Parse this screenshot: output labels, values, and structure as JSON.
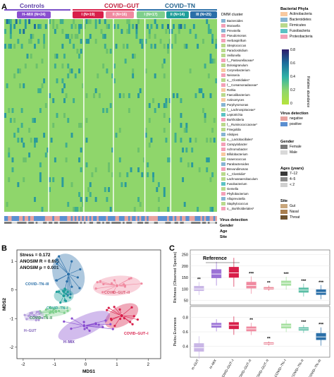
{
  "panelA": {
    "letter": "A",
    "groups": [
      "Controls",
      "COVID–GUT",
      "COVID–TN"
    ],
    "pills": [
      "H–MIX (N=24)",
      "I (N=19)",
      "II (N=16)",
      "I (N=17)",
      "II (N=14)",
      "III (N=25)"
    ],
    "dmm_label": "DMM cluster",
    "taxa": [
      "Bacteroides",
      "Moraxella",
      "Prevotella",
      "Pseudomonas",
      "Herbaspirillum",
      "Streptococcus",
      "Paraclostridium",
      "Veillonella",
      "f__Pasteurellaceae*",
      "Dolosigranulum",
      "Corynebacterium",
      "Neisseria",
      "o__Clostridiales*",
      "f__Comamonadaceae*",
      "Rothia",
      "Faecalibacterium",
      "Actinomyces",
      "Porphyromonas",
      "f__Lachnospiraceae*",
      "Leptotrichia",
      "Burkholderia",
      "f__Ruminococcaceae*",
      "Finegoldia",
      "Alistipes",
      "o__Lactobacillales*",
      "Campylobacter",
      "Achromobacter",
      "Bifidobacterium",
      "Anaerococcus",
      "Parabacteroides",
      "Brevundimonas",
      "c__Clostridia*",
      "Lachnoanaerobaculum",
      "Fusobacterium",
      "Gemella",
      "Phyllobacterium",
      "Alloprevotella",
      "Staphylococcus",
      "o__Burkholderiales*"
    ],
    "taxa_colors": [
      "#86b4d3",
      "#f4a0b8",
      "#86b4d3",
      "#f4a0b8",
      "#f4a0b8",
      "#b9d98c",
      "#b9d98c",
      "#b9d98c",
      "#f4a0b8",
      "#b9d98c",
      "#f8c9a0",
      "#f4a0b8",
      "#b9d98c",
      "#f4a0b8",
      "#f8c9a0",
      "#b9d98c",
      "#f8c9a0",
      "#86b4d3",
      "#b9d98c",
      "#5bc2c4",
      "#f4a0b8",
      "#b9d98c",
      "#b9d98c",
      "#86b4d3",
      "#b9d98c",
      "#f4a0b8",
      "#f4a0b8",
      "#f8c9a0",
      "#b9d98c",
      "#86b4d3",
      "#f4a0b8",
      "#b9d98c",
      "#b9d98c",
      "#5bc2c4",
      "#b9d98c",
      "#f4a0b8",
      "#86b4d3",
      "#b9d98c",
      "#f4a0b8"
    ],
    "track_labels": [
      "Virus detection",
      "Gender",
      "Age",
      "Site"
    ],
    "legend": {
      "phyla_title": "Bacterial Phyla",
      "phyla": [
        {
          "name": "Actinobacteria",
          "color": "#f8c9a0"
        },
        {
          "name": "Bacteroidetes",
          "color": "#86b4d3"
        },
        {
          "name": "Firmicutes",
          "color": "#b9d98c"
        },
        {
          "name": "Fusobacteria",
          "color": "#5bc2c4"
        },
        {
          "name": "Proteobacteria",
          "color": "#f4a0b8"
        }
      ],
      "abundance_title": "Relative abundance",
      "abundance_ticks": [
        "0.8",
        "0.6",
        "0.4",
        "0.2",
        "0"
      ],
      "virus_title": "Virus detection",
      "virus": [
        {
          "name": "negative",
          "color": "#e7a3a0"
        },
        {
          "name": "positive",
          "color": "#5a8fd1"
        }
      ],
      "gender_title": "Gender",
      "gender": [
        {
          "name": "Female",
          "color": "#7a7a7a"
        },
        {
          "name": "Male",
          "color": "#d9d9d9"
        }
      ],
      "age_title": "Ages (years)",
      "age": [
        {
          "name": "7–12",
          "color": "#3a3a3a"
        },
        {
          "name": "4–5",
          "color": "#8a8a8a"
        },
        {
          "name": "< 2",
          "color": "#d0d0d0"
        }
      ],
      "site_title": "Site",
      "site": [
        {
          "name": "Gut",
          "color": "#c9a77c"
        },
        {
          "name": "Nasal",
          "color": "#a97f4f"
        },
        {
          "name": "Throat",
          "color": "#6e5431"
        }
      ]
    }
  },
  "panelB": {
    "letter": "B",
    "stats": [
      "Stress = 0.172",
      "ANOSIM R = 0.695",
      "ANOSIM p = 0.001"
    ],
    "xlabel": "MDS1",
    "ylabel": "MDS2",
    "xticks": [
      "-2",
      "-1",
      "0",
      "1",
      "2"
    ],
    "yticks": [
      "1",
      "0",
      "-1",
      "-2"
    ],
    "cluster_labels": [
      "COVID–TN–III",
      "COVID–TN–I",
      "COVID–TN–II",
      "COVID–GUT–II",
      "COVID–GUT–I",
      "H–GUT",
      "H–MIX"
    ]
  },
  "panelC": {
    "letter": "C",
    "reference_label": "Reference",
    "top_ylabel": "Richness (Observed Species)",
    "bottom_ylabel": "Pielou Evenness",
    "top_yticks": [
      "250",
      "200",
      "150",
      "100",
      "50"
    ],
    "bottom_yticks": [
      "0.8",
      "0.6",
      "0.4"
    ],
    "categories": [
      "H–GUT",
      "H–MIX",
      "COVID–GUT–I",
      "COVID–GUT–II",
      "COVID–TN–I",
      "COVID–TN–II",
      "COVID–TN–III"
    ],
    "x_labels": [
      "H–GUT",
      "H–MIX",
      "COVID–GUT–I",
      "COVID–GUT–II",
      "*COVID–GUT–II",
      "COVID–TN–I",
      "COVID–TN–II",
      "COVID–TN–III"
    ],
    "top_sig": [
      "**",
      "",
      "",
      "***",
      "**",
      "***",
      "***",
      "***"
    ],
    "bottom_sig": [
      "",
      "",
      "",
      "**",
      "**",
      "",
      "***",
      "***"
    ]
  },
  "chart_data": [
    {
      "type": "heatmap",
      "title": "",
      "xlabel": "",
      "ylabel": "",
      "categories": [
        "Bacteroides",
        "Moraxella",
        "Prevotella",
        "Pseudomonas",
        "Herbaspirillum",
        "Streptococcus",
        "Paraclostridium",
        "Veillonella",
        "f__Pasteurellaceae*",
        "Dolosigranulum",
        "Corynebacterium",
        "Neisseria",
        "o__Clostridiales*",
        "f__Comamonadaceae*",
        "Rothia",
        "Faecalibacterium",
        "Actinomyces",
        "Porphyromonas",
        "f__Lachnospiraceae*",
        "Leptotrichia",
        "Burkholderia",
        "f__Ruminococcaceae*",
        "Finegoldia",
        "Alistipes",
        "o__Lactobacillales*",
        "Campylobacter",
        "Achromobacter",
        "Bifidobacterium",
        "Anaerococcus",
        "Parabacteroides",
        "Brevundimonas",
        "c__Clostridia*",
        "Lachnoanaerobaculum",
        "Fusobacterium",
        "Gemella",
        "Phyllobacterium",
        "Alloprevotella",
        "Staphylococcus",
        "o__Burkholderiales*"
      ],
      "clusters": [
        "H–MIX",
        "I",
        "II",
        "I",
        "II",
        "III"
      ],
      "cluster_sizes": [
        24,
        19,
        16,
        17,
        14,
        25
      ],
      "value_range": [
        0,
        0.8
      ]
    },
    {
      "type": "scatter",
      "title": "",
      "xlabel": "MDS1",
      "ylabel": "MDS2",
      "xlim": [
        -2.2,
        2.4
      ],
      "ylim": [
        -2.4,
        1.4
      ],
      "series": [
        {
          "name": "COVID–TN–III",
          "color": "#2a6fa8",
          "center": [
            -0.55,
            0.55
          ]
        },
        {
          "name": "COVID–TN–I",
          "color": "#1f9e9a",
          "center": [
            -0.7,
            -0.2
          ]
        },
        {
          "name": "COVID–TN–II",
          "color": "#7fcf8c",
          "center": [
            -0.95,
            -0.75
          ]
        },
        {
          "name": "COVID–GUT–II",
          "color": "#f08aa0",
          "center": [
            1.0,
            0.15
          ]
        },
        {
          "name": "COVID–GUT–I",
          "color": "#d81f4a",
          "center": [
            1.15,
            -0.9
          ]
        },
        {
          "name": "H–GUT",
          "color": "#b39ddb",
          "center": [
            -1.65,
            -0.9
          ]
        },
        {
          "name": "H–MIX",
          "color": "#8a4fd0",
          "center": [
            -0.05,
            -1.25
          ]
        }
      ]
    },
    {
      "type": "box",
      "title": "",
      "xlabel": "",
      "ylabel": "Richness (Observed Species)",
      "ylim": [
        30,
        270
      ],
      "categories": [
        "H–GUT",
        "H–MIX",
        "COVID–GUT–I",
        "COVID–GUT–II",
        "*COVID–GUT–II",
        "COVID–TN–I",
        "COVID–TN–II",
        "COVID–TN–III"
      ],
      "medians": [
        100,
        165,
        170,
        115,
        103,
        125,
        95,
        85
      ],
      "q1": [
        92,
        148,
        150,
        103,
        99,
        115,
        85,
        75
      ],
      "q3": [
        112,
        185,
        195,
        130,
        107,
        135,
        105,
        97
      ],
      "colors": [
        "#c9b6e6",
        "#9b72d6",
        "#d81f4a",
        "#f08aa0",
        "#e56a7f",
        "#a6e0a0",
        "#5bbfa6",
        "#2a6fa8"
      ]
    },
    {
      "type": "box",
      "title": "",
      "xlabel": "",
      "ylabel": "Pielou Evenness",
      "ylim": [
        0.25,
        0.95
      ],
      "categories": [
        "H–GUT",
        "H–MIX",
        "COVID–GUT–I",
        "COVID–GUT–II",
        "*COVID–GUT–II",
        "COVID–TN–I",
        "COVID–TN–II",
        "COVID–TN–III"
      ],
      "medians": [
        0.38,
        0.69,
        0.69,
        0.64,
        0.44,
        0.68,
        0.64,
        0.53
      ],
      "q1": [
        0.33,
        0.66,
        0.64,
        0.61,
        0.43,
        0.65,
        0.62,
        0.49
      ],
      "q3": [
        0.44,
        0.72,
        0.73,
        0.67,
        0.45,
        0.71,
        0.66,
        0.58
      ],
      "colors": [
        "#c9b6e6",
        "#9b72d6",
        "#d81f4a",
        "#f08aa0",
        "#e56a7f",
        "#a6e0a0",
        "#5bbfa6",
        "#2a6fa8"
      ]
    }
  ]
}
